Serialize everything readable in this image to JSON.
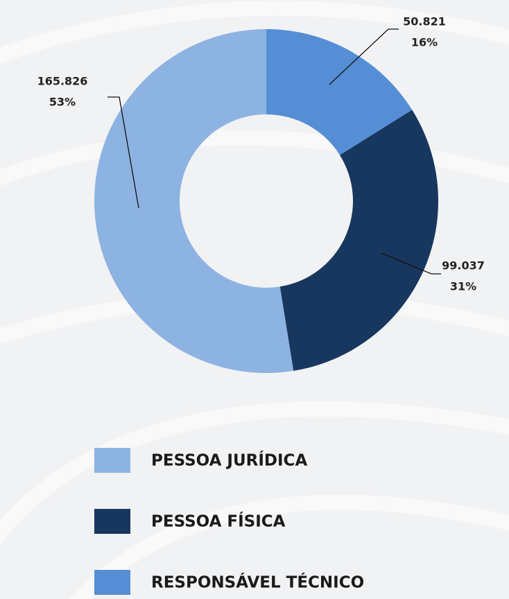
{
  "chart_data": {
    "type": "donut",
    "categories": [
      "PESSOA JURÍDICA",
      "PESSOA FÍSICA",
      "RESPONSÁVEL TÉCNICO"
    ],
    "values": [
      165826,
      99037,
      50821
    ],
    "value_labels": [
      "165.826",
      "99.037",
      "50.821"
    ],
    "percent_labels": [
      "53%",
      "31%",
      "16%"
    ],
    "colors": [
      "#8db3e2",
      "#17375e",
      "#558ed5"
    ],
    "direction": "counterclockwise",
    "legend": "bottom"
  }
}
